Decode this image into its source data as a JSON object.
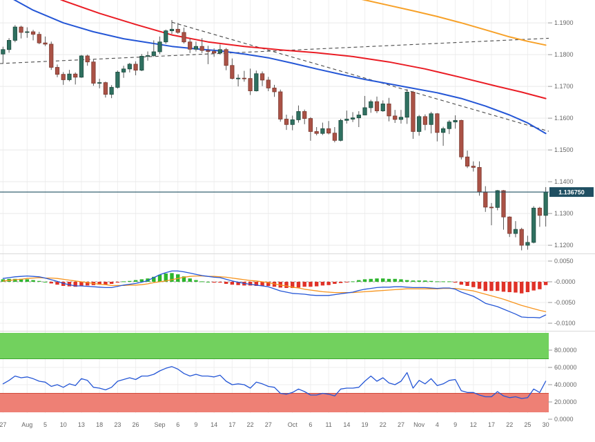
{
  "chart_data": {
    "type": "candlestick",
    "description": "Daily FX candlestick chart with moving averages, trendlines, MACD and RSI panels",
    "colors": {
      "background": "#ffffff",
      "price_line": "#1f4f62",
      "grid": "#e9e9e9",
      "vertical_grid": "#efefef",
      "separator": "#d9d9d9",
      "trendline": "#4a4a4a"
    },
    "price_panel": {
      "y_axis_ticks": [
        [
          "1.1900",
          1.19
        ],
        [
          "1.1800",
          1.18
        ],
        [
          "1.1700",
          1.17
        ],
        [
          "1.1600",
          1.16
        ],
        [
          "1.1500",
          1.15
        ],
        [
          "1.1400",
          1.14
        ],
        [
          "1.1300",
          1.13
        ],
        [
          "1.1200",
          1.12
        ]
      ],
      "current_price": 1.13675,
      "current_price_label": "1.136750",
      "up_color": "#2f7060",
      "up_edge": "#1c4a3e",
      "down_color": "#aa5246",
      "down_edge": "#7d3a30",
      "candles": [
        [
          1.1802,
          1.1825,
          1.1772,
          1.1816
        ],
        [
          1.1816,
          1.1852,
          1.1806,
          1.1845
        ],
        [
          1.1845,
          1.1893,
          1.1839,
          1.1887
        ],
        [
          1.1887,
          1.1891,
          1.1851,
          1.187
        ],
        [
          1.187,
          1.1886,
          1.1853,
          1.1872
        ],
        [
          1.1872,
          1.1878,
          1.1845,
          1.1864
        ],
        [
          1.1864,
          1.1872,
          1.1833,
          1.1837
        ],
        [
          1.1837,
          1.1857,
          1.1827,
          1.1833
        ],
        [
          1.1833,
          1.1841,
          1.1752,
          1.176
        ],
        [
          1.176,
          1.1769,
          1.1729,
          1.1738
        ],
        [
          1.1738,
          1.1745,
          1.1705,
          1.1721
        ],
        [
          1.1721,
          1.1752,
          1.1716,
          1.1739
        ],
        [
          1.1739,
          1.1744,
          1.1706,
          1.1729
        ],
        [
          1.1729,
          1.1799,
          1.1727,
          1.1796
        ],
        [
          1.1796,
          1.18,
          1.1765,
          1.1777
        ],
        [
          1.1777,
          1.1786,
          1.1702,
          1.171
        ],
        [
          1.171,
          1.1724,
          1.1694,
          1.1712
        ],
        [
          1.1712,
          1.1715,
          1.1665,
          1.1675
        ],
        [
          1.1675,
          1.1704,
          1.1663,
          1.1697
        ],
        [
          1.1697,
          1.175,
          1.1693,
          1.1745
        ],
        [
          1.1745,
          1.1765,
          1.1727,
          1.1755
        ],
        [
          1.1755,
          1.1774,
          1.1744,
          1.177
        ],
        [
          1.177,
          1.1779,
          1.1735,
          1.1751
        ],
        [
          1.1751,
          1.1802,
          1.1748,
          1.1795
        ],
        [
          1.1795,
          1.181,
          1.1781,
          1.1797
        ],
        [
          1.1797,
          1.1845,
          1.1793,
          1.1809
        ],
        [
          1.1809,
          1.1857,
          1.1802,
          1.184
        ],
        [
          1.184,
          1.1879,
          1.1834,
          1.1875
        ],
        [
          1.1875,
          1.1909,
          1.1865,
          1.188
        ],
        [
          1.188,
          1.19,
          1.1866,
          1.187
        ],
        [
          1.187,
          1.1885,
          1.1835,
          1.184
        ],
        [
          1.184,
          1.1851,
          1.1805,
          1.1817
        ],
        [
          1.1817,
          1.1841,
          1.181,
          1.1826
        ],
        [
          1.1826,
          1.1852,
          1.1805,
          1.1813
        ],
        [
          1.1813,
          1.1828,
          1.177,
          1.181
        ],
        [
          1.181,
          1.182,
          1.1793,
          1.1805
        ],
        [
          1.1805,
          1.1832,
          1.18,
          1.1816
        ],
        [
          1.1816,
          1.1821,
          1.1751,
          1.1766
        ],
        [
          1.1766,
          1.1788,
          1.1722,
          1.1725
        ],
        [
          1.1725,
          1.1738,
          1.17,
          1.1726
        ],
        [
          1.1726,
          1.1749,
          1.1715,
          1.1725
        ],
        [
          1.1725,
          1.1756,
          1.1673,
          1.1686
        ],
        [
          1.1686,
          1.175,
          1.1684,
          1.174
        ],
        [
          1.174,
          1.1747,
          1.1701,
          1.172
        ],
        [
          1.172,
          1.173,
          1.1685,
          1.1695
        ],
        [
          1.1695,
          1.1705,
          1.1667,
          1.1683
        ],
        [
          1.1683,
          1.169,
          1.1589,
          1.1597
        ],
        [
          1.1597,
          1.1611,
          1.1563,
          1.158
        ],
        [
          1.158,
          1.1608,
          1.1562,
          1.1595
        ],
        [
          1.1595,
          1.164,
          1.1586,
          1.1621
        ],
        [
          1.1621,
          1.1627,
          1.1581,
          1.1599
        ],
        [
          1.1599,
          1.1603,
          1.1529,
          1.1558
        ],
        [
          1.1558,
          1.1572,
          1.1546,
          1.1552
        ],
        [
          1.1552,
          1.1586,
          1.1547,
          1.1567
        ],
        [
          1.1567,
          1.1591,
          1.1549,
          1.1553
        ],
        [
          1.1553,
          1.1572,
          1.1524,
          1.153
        ],
        [
          1.153,
          1.1598,
          1.1527,
          1.1593
        ],
        [
          1.1593,
          1.1624,
          1.1583,
          1.1597
        ],
        [
          1.1597,
          1.1619,
          1.1588,
          1.1601
        ],
        [
          1.1601,
          1.1622,
          1.1572,
          1.161
        ],
        [
          1.161,
          1.167,
          1.1609,
          1.1633
        ],
        [
          1.1633,
          1.1658,
          1.1617,
          1.1652
        ],
        [
          1.1652,
          1.1668,
          1.1616,
          1.1623
        ],
        [
          1.1623,
          1.1656,
          1.162,
          1.1645
        ],
        [
          1.1645,
          1.1664,
          1.159,
          1.1607
        ],
        [
          1.1607,
          1.1626,
          1.1585,
          1.1596
        ],
        [
          1.1596,
          1.1626,
          1.1583,
          1.1603
        ],
        [
          1.1603,
          1.1692,
          1.1582,
          1.1682
        ],
        [
          1.1682,
          1.1686,
          1.1535,
          1.1558
        ],
        [
          1.1558,
          1.161,
          1.1545,
          1.1605
        ],
        [
          1.1605,
          1.1612,
          1.1562,
          1.158
        ],
        [
          1.158,
          1.162,
          1.1552,
          1.1614
        ],
        [
          1.1614,
          1.1616,
          1.1527,
          1.1555
        ],
        [
          1.1555,
          1.1573,
          1.1513,
          1.1567
        ],
        [
          1.1567,
          1.1594,
          1.155,
          1.1588
        ],
        [
          1.1588,
          1.1609,
          1.1567,
          1.1593
        ],
        [
          1.1593,
          1.1595,
          1.147,
          1.1478
        ],
        [
          1.1478,
          1.1498,
          1.1443,
          1.1449
        ],
        [
          1.1449,
          1.1464,
          1.1432,
          1.1445
        ],
        [
          1.1445,
          1.1464,
          1.1356,
          1.1368
        ],
        [
          1.1368,
          1.1386,
          1.1305,
          1.132
        ],
        [
          1.132,
          1.1333,
          1.1263,
          1.1319
        ],
        [
          1.1319,
          1.1374,
          1.131,
          1.1372
        ],
        [
          1.1372,
          1.1374,
          1.1249,
          1.1289
        ],
        [
          1.1289,
          1.1291,
          1.1226,
          1.1237
        ],
        [
          1.1237,
          1.1276,
          1.1225,
          1.125
        ],
        [
          1.125,
          1.1255,
          1.1184,
          1.12
        ],
        [
          1.12,
          1.123,
          1.1186,
          1.1209
        ],
        [
          1.1209,
          1.1323,
          1.1206,
          1.1317
        ],
        [
          1.1317,
          1.1321,
          1.1258,
          1.1294
        ],
        [
          1.1294,
          1.1383,
          1.1259,
          1.1367
        ]
      ],
      "ma_fast": {
        "name": "ma-fast-blue",
        "color": "#2456d6",
        "points": [
          [
            0,
            1.1992
          ],
          [
            5,
            1.194
          ],
          [
            10,
            1.19
          ],
          [
            15,
            1.1872
          ],
          [
            20,
            1.185
          ],
          [
            24,
            1.1838
          ],
          [
            28,
            1.1826
          ],
          [
            32,
            1.1818
          ],
          [
            36,
            1.1812
          ],
          [
            40,
            1.1802
          ],
          [
            44,
            1.179
          ],
          [
            48,
            1.1773
          ],
          [
            52,
            1.1755
          ],
          [
            56,
            1.1738
          ],
          [
            60,
            1.1722
          ],
          [
            64,
            1.1708
          ],
          [
            68,
            1.1694
          ],
          [
            72,
            1.168
          ],
          [
            76,
            1.1662
          ],
          [
            80,
            1.1638
          ],
          [
            84,
            1.161
          ],
          [
            87,
            1.1585
          ],
          [
            90,
            1.1552
          ]
        ]
      },
      "ma_mid": {
        "name": "ma-mid-red",
        "color": "#ea1c24",
        "points": [
          [
            0,
            1.203
          ],
          [
            6,
            1.2
          ],
          [
            10,
            1.197
          ],
          [
            16,
            1.193
          ],
          [
            22,
            1.1895
          ],
          [
            28,
            1.1862
          ],
          [
            34,
            1.184
          ],
          [
            40,
            1.1826
          ],
          [
            46,
            1.1815
          ],
          [
            52,
            1.1806
          ],
          [
            58,
            1.1794
          ],
          [
            64,
            1.1777
          ],
          [
            70,
            1.1755
          ],
          [
            76,
            1.1728
          ],
          [
            82,
            1.17
          ],
          [
            86,
            1.1682
          ],
          [
            90,
            1.1662
          ]
        ]
      },
      "ma_slow": {
        "name": "ma-slow-orange",
        "color": "#f7a128",
        "points": [
          [
            56,
            1.1988
          ],
          [
            60,
            1.1972
          ],
          [
            64,
            1.1955
          ],
          [
            68,
            1.1938
          ],
          [
            72,
            1.192
          ],
          [
            76,
            1.19
          ],
          [
            80,
            1.1878
          ],
          [
            84,
            1.1856
          ],
          [
            87,
            1.1842
          ],
          [
            90,
            1.183
          ]
        ]
      },
      "trendlines": [
        {
          "name": "descending",
          "from": [
            28,
            1.1902
          ],
          "to": [
            91,
            1.1556
          ]
        },
        {
          "name": "ascending",
          "from": [
            -0.5,
            1.1772
          ],
          "to": [
            91,
            1.1852
          ]
        }
      ]
    },
    "macd_panel": {
      "y_axis_ticks": [
        [
          "0.0050",
          0.005
        ],
        [
          "-0.0000",
          0
        ],
        [
          "-0.0050",
          -0.005
        ],
        [
          "-0.0100",
          -0.01
        ]
      ],
      "macd_color": "#2456d6",
      "signal_color": "#f7941d",
      "hist_up_color": "#2db52d",
      "hist_down_color": "#e03228",
      "macd": [
        0.0008,
        0.001,
        0.0012,
        0.0013,
        0.0014,
        0.0013,
        0.0012,
        0.0009,
        0.0005,
        0.0001,
        -0.0004,
        -0.0007,
        -0.001,
        -0.001,
        -0.0011,
        -0.0012,
        -0.0013,
        -0.0014,
        -0.0014,
        -0.0011,
        -0.0008,
        -0.0006,
        -0.0004,
        -0.0001,
        0.0003,
        0.001,
        0.0017,
        0.0022,
        0.0026,
        0.0026,
        0.0024,
        0.0021,
        0.0018,
        0.0015,
        0.0013,
        0.0011,
        0.001,
        0.0006,
        0.0002,
        -0.0001,
        -0.0004,
        -0.0006,
        -0.0008,
        -0.001,
        -0.0012,
        -0.0017,
        -0.0022,
        -0.0025,
        -0.0028,
        -0.0029,
        -0.003,
        -0.0032,
        -0.0033,
        -0.0033,
        -0.0033,
        -0.0031,
        -0.0029,
        -0.0027,
        -0.0025,
        -0.0021,
        -0.0018,
        -0.0016,
        -0.0014,
        -0.0013,
        -0.0013,
        -0.0012,
        -0.0012,
        -0.0013,
        -0.0014,
        -0.0014,
        -0.0014,
        -0.0015,
        -0.0016,
        -0.0015,
        -0.0015,
        -0.0018,
        -0.0025,
        -0.003,
        -0.0035,
        -0.0043,
        -0.0052,
        -0.0056,
        -0.006,
        -0.0066,
        -0.0072,
        -0.0078,
        -0.0085,
        -0.0086,
        -0.0086,
        -0.0087,
        -0.008
      ],
      "signal": [
        0.0002,
        0.0003,
        0.0005,
        0.0006,
        0.0008,
        0.0009,
        0.001,
        0.0009,
        0.0009,
        0.0008,
        0.0006,
        0.0004,
        0.0002,
        0,
        -0.0002,
        -0.0004,
        -0.0006,
        -0.0007,
        -0.0009,
        -0.0009,
        -0.0009,
        -0.0008,
        -0.0008,
        -0.0007,
        -0.0005,
        -0.0002,
        0,
        0.0002,
        0.0005,
        0.0008,
        0.0011,
        0.0013,
        0.0014,
        0.0014,
        0.0013,
        0.0013,
        0.0012,
        0.0011,
        0.0009,
        0.0007,
        0.0005,
        0.0003,
        0.0002,
        0,
        -0.0002,
        -0.0005,
        -0.0008,
        -0.001,
        -0.0013,
        -0.0015,
        -0.0018,
        -0.002,
        -0.0022,
        -0.0024,
        -0.0025,
        -0.0026,
        -0.0026,
        -0.0026,
        -0.0026,
        -0.0025,
        -0.0024,
        -0.0023,
        -0.0022,
        -0.0021,
        -0.002,
        -0.0019,
        -0.0018,
        -0.0017,
        -0.0017,
        -0.0017,
        -0.0017,
        -0.0017,
        -0.0017,
        -0.0016,
        -0.0016,
        -0.0016,
        -0.0018,
        -0.002,
        -0.0022,
        -0.0026,
        -0.003,
        -0.0034,
        -0.0038,
        -0.0042,
        -0.0047,
        -0.0052,
        -0.0057,
        -0.0061,
        -0.0065,
        -0.0069,
        -0.0072
      ]
    },
    "rsi_panel": {
      "y_axis_ticks": [
        [
          "80.0000",
          80
        ],
        [
          "60.0000",
          60
        ],
        [
          "40.0000",
          40
        ],
        [
          "20.0000",
          20
        ],
        [
          "0.0000",
          0
        ]
      ],
      "line_color": "#2456d6",
      "overbought_band": {
        "from": 70,
        "to": 100,
        "color": "#72d15e",
        "edge": "#3ca72e"
      },
      "oversold_band": {
        "from": 8,
        "to": 30,
        "color": "#ee8075",
        "edge": "#d04a3a"
      },
      "values": [
        41,
        45,
        50,
        48,
        49,
        47,
        44,
        43,
        38,
        40,
        37,
        41,
        39,
        47,
        45,
        37,
        36,
        34,
        37,
        44,
        46,
        48,
        46,
        50,
        50,
        52,
        56,
        59,
        61,
        58,
        53,
        50,
        52,
        50,
        50,
        49,
        51,
        44,
        40,
        41,
        40,
        36,
        43,
        41,
        38,
        37,
        30,
        29,
        31,
        35,
        32,
        28,
        28,
        30,
        29,
        27,
        35,
        36,
        36,
        37,
        44,
        50,
        44,
        48,
        42,
        40,
        44,
        54,
        36,
        45,
        41,
        47,
        39,
        41,
        45,
        46,
        33,
        31,
        31,
        28,
        26,
        26,
        32,
        27,
        25,
        26,
        24,
        25,
        35,
        31,
        44
      ]
    },
    "x_axis": {
      "tick_labels": [
        [
          "27",
          0
        ],
        [
          "Aug",
          4
        ],
        [
          "5",
          7
        ],
        [
          "10",
          10
        ],
        [
          "13",
          13
        ],
        [
          "18",
          16
        ],
        [
          "23",
          19
        ],
        [
          "26",
          22
        ],
        [
          "Sep",
          26
        ],
        [
          "6",
          29
        ],
        [
          "9",
          32
        ],
        [
          "14",
          35
        ],
        [
          "17",
          38
        ],
        [
          "22",
          41
        ],
        [
          "27",
          44
        ],
        [
          "Oct",
          48
        ],
        [
          "6",
          51
        ],
        [
          "11",
          54
        ],
        [
          "14",
          57
        ],
        [
          "19",
          60
        ],
        [
          "22",
          63
        ],
        [
          "27",
          66
        ],
        [
          "Nov",
          69
        ],
        [
          "4",
          72
        ],
        [
          "9",
          75
        ],
        [
          "12",
          78
        ],
        [
          "17",
          81
        ],
        [
          "22",
          84
        ],
        [
          "25",
          87
        ],
        [
          "30",
          90
        ]
      ]
    }
  }
}
